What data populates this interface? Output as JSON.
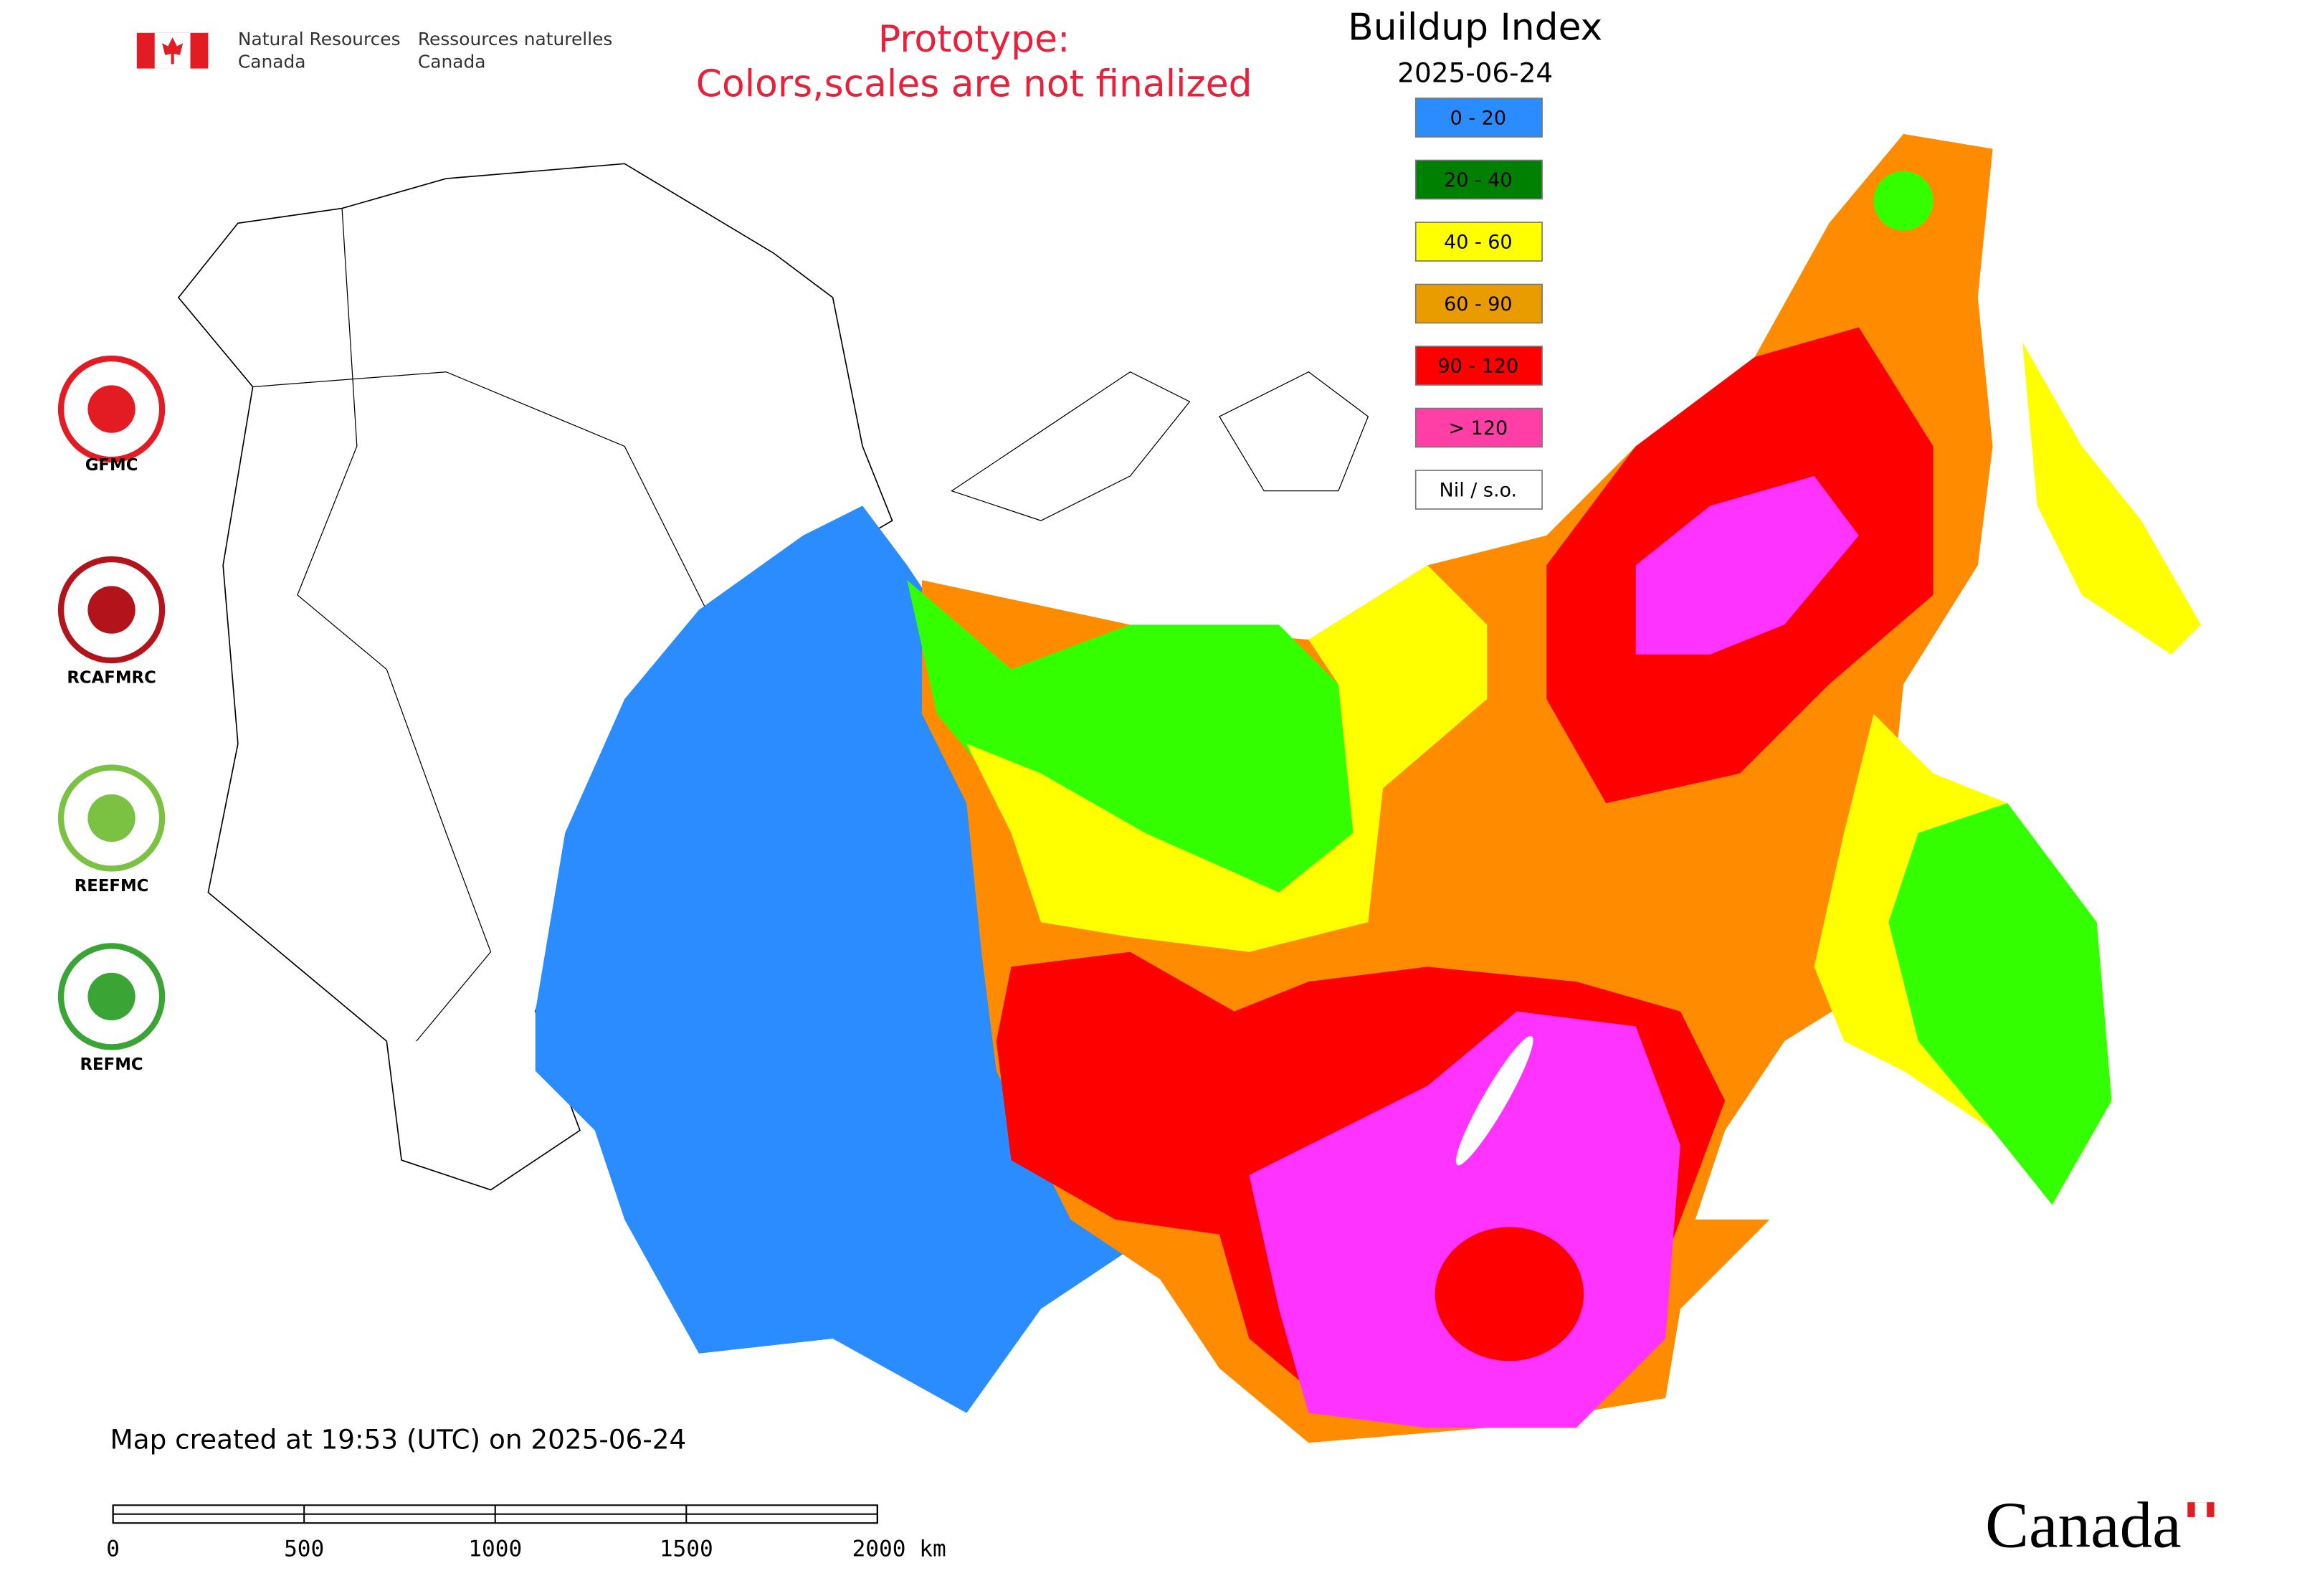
{
  "header": {
    "department_en": [
      "Natural Resources",
      "Canada"
    ],
    "department_fr": [
      "Ressources naturelles",
      "Canada"
    ]
  },
  "notice": [
    "Prototype:",
    "Colors,scales are not finalized"
  ],
  "map": {
    "title": "Buildup Index",
    "date": "2025-06-24",
    "legend": [
      {
        "label": "0 - 20",
        "color": "#2b8cff"
      },
      {
        "label": "20 - 40",
        "color": "#008000"
      },
      {
        "label": "40 - 60",
        "color": "#ffff00"
      },
      {
        "label": "60 - 90",
        "color": "#e89c00"
      },
      {
        "label": "90 - 120",
        "color": "#ff0000"
      },
      {
        "label": "> 120",
        "color": "#ff3fa6"
      },
      {
        "label": "Nil / s.o.",
        "color": "#ffffff"
      }
    ]
  },
  "logos": [
    "GFMC",
    "RCAFMRC",
    "REEFMC",
    "REFMC"
  ],
  "footer": {
    "created": "Map created at 19:53 (UTC) on 2025-06-24",
    "wordmark": "Canada"
  },
  "scale_bar": {
    "ticks": [
      0,
      500,
      1000,
      1500,
      {
        "value": 2000,
        "label": "2000 km"
      }
    ]
  }
}
